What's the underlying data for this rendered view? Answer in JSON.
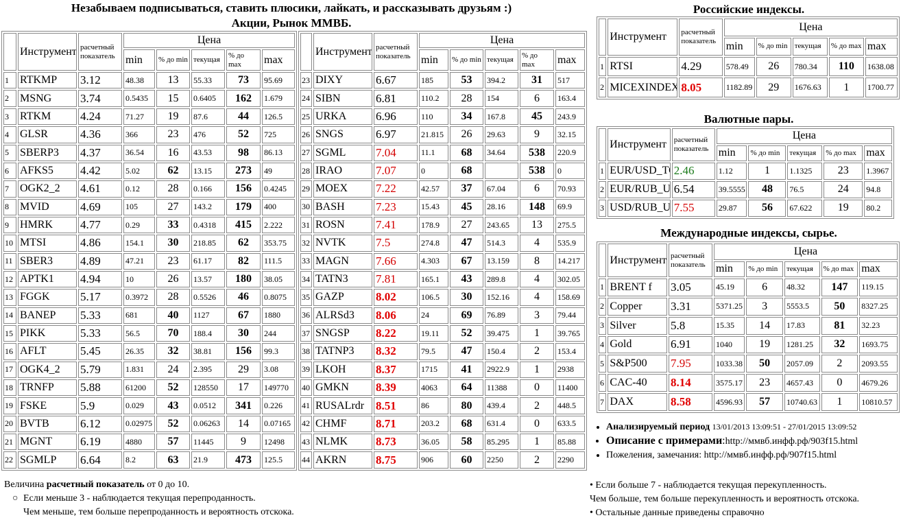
{
  "header": {
    "banner": "Незабываем подписываться, ставить плюсики, лайкать, и рассказывать друзьям :)",
    "stocks_title": "Акции, Рынок ММВБ."
  },
  "columns": {
    "instrument": "Инструмент",
    "score": "расчетный показатель",
    "price": "Цена",
    "min": "min",
    "pct_min": "% до min",
    "current": "текущая",
    "pct_max": "% до max",
    "max": "max"
  },
  "colors": {
    "red": "#d40000",
    "green": "#1a7a1a"
  },
  "stocks_left": [
    [
      "1",
      "RTKMP",
      "3.12",
      "48.38",
      "13",
      "55.33",
      "73",
      "95.69"
    ],
    [
      "2",
      "MSNG",
      "3.74",
      "0.5435",
      "15",
      "0.6405",
      "162",
      "1.679"
    ],
    [
      "3",
      "RTKM",
      "4.24",
      "71.27",
      "19",
      "87.6",
      "44",
      "126.5"
    ],
    [
      "4",
      "GLSR",
      "4.36",
      "366",
      "23",
      "476",
      "52",
      "725"
    ],
    [
      "5",
      "SBERP3",
      "4.37",
      "36.54",
      "16",
      "43.53",
      "98",
      "86.13"
    ],
    [
      "6",
      "AFKS5",
      "4.42",
      "5.02",
      "62",
      "13.15",
      "273",
      "49"
    ],
    [
      "7",
      "OGK2_2",
      "4.61",
      "0.12",
      "28",
      "0.166",
      "156",
      "0.4245"
    ],
    [
      "8",
      "MVID",
      "4.69",
      "105",
      "27",
      "143.2",
      "179",
      "400"
    ],
    [
      "9",
      "HMRK",
      "4.77",
      "0.29",
      "33",
      "0.4318",
      "415",
      "2.222"
    ],
    [
      "10",
      "MTSI",
      "4.86",
      "154.1",
      "30",
      "218.85",
      "62",
      "353.75"
    ],
    [
      "11",
      "SBER3",
      "4.89",
      "47.21",
      "23",
      "61.17",
      "82",
      "111.5"
    ],
    [
      "12",
      "APTK1",
      "4.94",
      "10",
      "26",
      "13.57",
      "180",
      "38.05"
    ],
    [
      "13",
      "FGGK",
      "5.17",
      "0.3972",
      "28",
      "0.5526",
      "46",
      "0.8075"
    ],
    [
      "14",
      "BANEP",
      "5.33",
      "681",
      "40",
      "1127",
      "67",
      "1880"
    ],
    [
      "15",
      "PIKK",
      "5.33",
      "56.5",
      "70",
      "188.4",
      "30",
      "244"
    ],
    [
      "16",
      "AFLT",
      "5.45",
      "26.35",
      "32",
      "38.81",
      "156",
      "99.3"
    ],
    [
      "17",
      "OGK4_2",
      "5.79",
      "1.831",
      "24",
      "2.395",
      "29",
      "3.08"
    ],
    [
      "18",
      "TRNFP",
      "5.88",
      "61200",
      "52",
      "128550",
      "17",
      "149770"
    ],
    [
      "19",
      "FSKE",
      "5.9",
      "0.029",
      "43",
      "0.0512",
      "341",
      "0.226"
    ],
    [
      "20",
      "BVTB",
      "6.12",
      "0.02975",
      "52",
      "0.06263",
      "14",
      "0.07165"
    ],
    [
      "21",
      "MGNT",
      "6.19",
      "4880",
      "57",
      "11445",
      "9",
      "12498"
    ],
    [
      "22",
      "SGMLP",
      "6.64",
      "8.2",
      "63",
      "21.9",
      "473",
      "125.5"
    ]
  ],
  "stocks_right": [
    [
      "23",
      "DIXY",
      "6.67",
      "185",
      "53",
      "394.2",
      "31",
      "517"
    ],
    [
      "24",
      "SIBN",
      "6.81",
      "110.2",
      "28",
      "154",
      "6",
      "163.4"
    ],
    [
      "25",
      "URKA",
      "6.96",
      "110",
      "34",
      "167.8",
      "45",
      "243.9"
    ],
    [
      "26",
      "SNGS",
      "6.97",
      "21.815",
      "26",
      "29.63",
      "9",
      "32.15"
    ],
    [
      "27",
      "SGML",
      "7.04",
      "11.1",
      "68",
      "34.64",
      "538",
      "220.9"
    ],
    [
      "28",
      "IRAO",
      "7.07",
      "0",
      "68",
      "",
      "538",
      "0"
    ],
    [
      "29",
      "MOEX",
      "7.22",
      "42.57",
      "37",
      "67.04",
      "6",
      "70.93"
    ],
    [
      "30",
      "BASH",
      "7.23",
      "15.43",
      "45",
      "28.16",
      "148",
      "69.9"
    ],
    [
      "31",
      "ROSN",
      "7.41",
      "178.9",
      "27",
      "243.65",
      "13",
      "275.5"
    ],
    [
      "32",
      "NVTK",
      "7.5",
      "274.8",
      "47",
      "514.3",
      "4",
      "535.9"
    ],
    [
      "33",
      "MAGN",
      "7.66",
      "4.303",
      "67",
      "13.159",
      "8",
      "14.217"
    ],
    [
      "34",
      "TATN3",
      "7.81",
      "165.1",
      "43",
      "289.8",
      "4",
      "302.05"
    ],
    [
      "35",
      "GAZP",
      "8.02",
      "106.5",
      "30",
      "152.16",
      "4",
      "158.69"
    ],
    [
      "36",
      "ALRSd3",
      "8.06",
      "24",
      "69",
      "76.89",
      "3",
      "79.44"
    ],
    [
      "37",
      "SNGSP",
      "8.22",
      "19.11",
      "52",
      "39.475",
      "1",
      "39.765"
    ],
    [
      "38",
      "TATNP3",
      "8.32",
      "79.5",
      "47",
      "150.4",
      "2",
      "153.4"
    ],
    [
      "39",
      "LKOH",
      "8.37",
      "1715",
      "41",
      "2922.9",
      "1",
      "2938"
    ],
    [
      "40",
      "GMKN",
      "8.39",
      "4063",
      "64",
      "11388",
      "0",
      "11400"
    ],
    [
      "41",
      "RUSALrdr",
      "8.51",
      "86",
      "80",
      "439.4",
      "2",
      "448.5"
    ],
    [
      "42",
      "CHMF",
      "8.71",
      "203.2",
      "68",
      "631.4",
      "0",
      "633.5"
    ],
    [
      "43",
      "NLMK",
      "8.73",
      "36.05",
      "58",
      "85.295",
      "1",
      "85.88"
    ],
    [
      "44",
      "AKRN",
      "8.75",
      "906",
      "60",
      "2250",
      "2",
      "2290"
    ]
  ],
  "ru_indices": {
    "title": "Российские индексы",
    "rows": [
      [
        "1",
        "RTSI",
        "4.29",
        "578.49",
        "26",
        "780.34",
        "110",
        "1638.08"
      ],
      [
        "2",
        "MICEXINDEXCF",
        "8.05",
        "1182.89",
        "29",
        "1676.63",
        "1",
        "1700.77"
      ]
    ]
  },
  "currency": {
    "title": "Валютные пары",
    "rows": [
      [
        "1",
        "EUR/USD_TOD",
        "2.46",
        "1.12",
        "1",
        "1.1325",
        "23",
        "1.3967"
      ],
      [
        "2",
        "EUR/RUB_UTS",
        "6.54",
        "39.5555",
        "48",
        "76.5",
        "24",
        "94.8"
      ],
      [
        "3",
        "USD/RUB_UTS",
        "7.55",
        "29.87",
        "56",
        "67.622",
        "19",
        "80.2"
      ]
    ]
  },
  "intl": {
    "title": "Международные индексы, сырье",
    "rows": [
      [
        "1",
        "BRENT f",
        "3.05",
        "45.19",
        "6",
        "48.32",
        "147",
        "119.15"
      ],
      [
        "2",
        "Copper",
        "3.31",
        "5371.25",
        "3",
        "5553.5",
        "50",
        "8327.25"
      ],
      [
        "3",
        "Silver",
        "5.8",
        "15.35",
        "14",
        "17.83",
        "81",
        "32.23"
      ],
      [
        "4",
        "Gold",
        "6.91",
        "1040",
        "19",
        "1281.25",
        "32",
        "1693.75"
      ],
      [
        "5",
        "S&P500",
        "7.95",
        "1033.38",
        "50",
        "2057.09",
        "2",
        "2093.55"
      ],
      [
        "6",
        "CAC-40",
        "8.14",
        "3575.17",
        "23",
        "4657.43",
        "0",
        "4679.26"
      ],
      [
        "7",
        "DAX",
        "8.58",
        "4596.93",
        "57",
        "10740.63",
        "1",
        "10810.57"
      ]
    ]
  },
  "info": {
    "period_label": "Анализируемый период",
    "period_value": "13/01/2013 13:09:51 - 27/01/2015 13:09:52",
    "desc_label": "Описание с примерами",
    "desc_link": "http://ммвб.инфф.рф/903f15.html",
    "feedback_label": "Пожеления, замечания:",
    "feedback_link": "http://ммвб.инфф.рф/907f15.html"
  },
  "notes_left": {
    "intro_pre": "Величина",
    "intro_bold": "расчетный показатель",
    "intro_post": "от 0 до 10.",
    "less3": "Если меньше 3 - наблюдается текущая перепроданность.",
    "less3_more": "Чем меньше, тем больше перепроданность и вероятность отскока."
  },
  "notes_right": {
    "more7": "Если больше 7 - наблюдается текущая перекупленность.",
    "more7_more": "Чем больше, тем больше перекупленность и вероятность отскока.",
    "other": "Остальные данные приведены справочно"
  }
}
